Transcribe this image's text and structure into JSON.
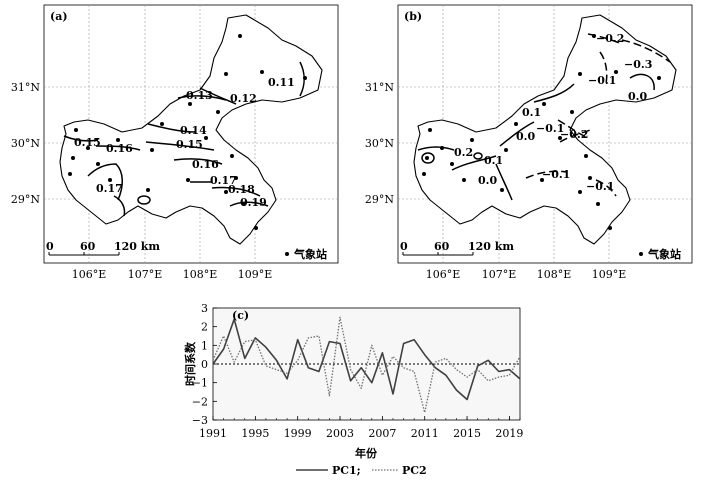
{
  "maps": [
    {
      "panel_label": "(a)",
      "lat_labels": [
        "31°N",
        "30°N",
        "29°N"
      ],
      "lon_labels": [
        "106°E",
        "107°E",
        "108°E",
        "109°E"
      ],
      "scale": {
        "zero": "0",
        "mid": "60",
        "end": "120 km"
      },
      "legend": "气象站",
      "contour_labels": [
        "0.11",
        "0.13",
        "0.12",
        "0.14",
        "0.15",
        "0.16",
        "0.15",
        "0.16",
        "0.17",
        "0.17",
        "0.18",
        "0.19"
      ]
    },
    {
      "panel_label": "(b)",
      "lat_labels": [
        "31°N",
        "30°N",
        "29°N"
      ],
      "lon_labels": [
        "106°E",
        "107°E",
        "108°E",
        "109°E"
      ],
      "scale": {
        "zero": "0",
        "mid": "60",
        "end": "120 km"
      },
      "legend": "气象站",
      "contour_labels": [
        "−0.2",
        "−0.3",
        "−0.1",
        "0.0",
        "0.1",
        "0.0",
        "−0.1",
        "−0.2",
        "0.2",
        "0.1",
        "0.0",
        "−0.1",
        "−0.1"
      ]
    }
  ],
  "chart_data": {
    "type": "line",
    "panel_label": "(c)",
    "xlabel": "年份",
    "ylabel": "时间系数",
    "xlim": [
      1991,
      2020
    ],
    "ylim": [
      -3,
      3
    ],
    "x_ticks": [
      "1991",
      "1995",
      "1999",
      "2003",
      "2007",
      "2011",
      "2015",
      "2019"
    ],
    "y_ticks": [
      "3",
      "2",
      "1",
      "0",
      "−1",
      "−2",
      "−3"
    ],
    "x": [
      1991,
      1992,
      1993,
      1994,
      1995,
      1996,
      1997,
      1998,
      1999,
      2000,
      2001,
      2002,
      2003,
      2004,
      2005,
      2006,
      2007,
      2008,
      2009,
      2010,
      2011,
      2012,
      2013,
      2014,
      2015,
      2016,
      2017,
      2018,
      2019,
      2020
    ],
    "series": [
      {
        "name": "PC1;",
        "style": "solid",
        "color": "#404040",
        "values": [
          0.0,
          0.8,
          2.4,
          0.3,
          1.4,
          0.9,
          0.2,
          -0.8,
          1.3,
          -0.2,
          -0.4,
          1.2,
          1.1,
          -0.9,
          -0.2,
          -1.0,
          0.6,
          -1.6,
          1.1,
          1.3,
          0.5,
          -0.2,
          -0.6,
          -1.4,
          -1.9,
          -0.1,
          0.2,
          -0.4,
          -0.3,
          -0.8
        ]
      },
      {
        "name": "PC2",
        "style": "dotted",
        "color": "#707070",
        "values": [
          0.2,
          1.5,
          0.1,
          1.2,
          1.3,
          -0.1,
          -0.3,
          -0.5,
          0.2,
          1.4,
          1.5,
          -1.7,
          2.5,
          -0.3,
          -1.3,
          1.0,
          -0.6,
          0.4,
          -0.2,
          -0.4,
          -2.6,
          0.1,
          0.3,
          -0.3,
          -0.7,
          -0.3,
          -0.9,
          -0.7,
          -0.6,
          0.4
        ]
      }
    ]
  }
}
